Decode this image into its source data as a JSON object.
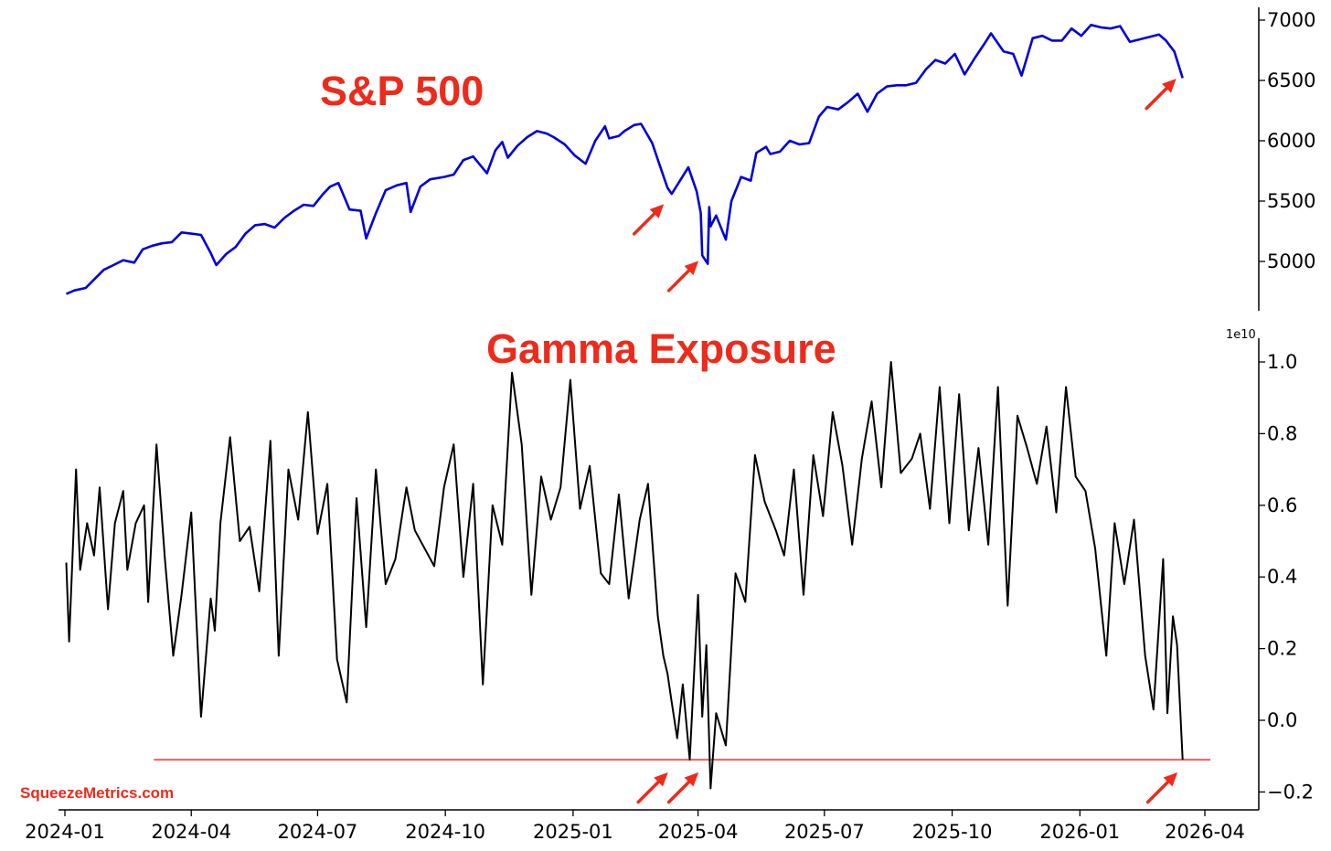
{
  "annotations": {
    "sp500_title": "S&P 500",
    "gamma_title": "Gamma Exposure",
    "source": "SqueezeMetrics.com",
    "title_color": "#ee2a1a",
    "arrow_color": "#ee2a1a"
  },
  "chart_data": [
    {
      "type": "line",
      "title": "S&P 500",
      "color": "#0000dd",
      "yaxis_side": "right",
      "ylim": [
        4620,
        7080
      ],
      "yticks": [
        5000,
        5500,
        6000,
        6500,
        7000
      ],
      "ytick_labels": [
        "5000",
        "5500",
        "6000",
        "6500",
        "7000"
      ],
      "grid": false,
      "series": [
        {
          "x": [
            "2024-01-02",
            "2024-01-08",
            "2024-01-16",
            "2024-01-22",
            "2024-01-29",
            "2024-02-05",
            "2024-02-12",
            "2024-02-20",
            "2024-02-26",
            "2024-03-04",
            "2024-03-11",
            "2024-03-18",
            "2024-03-25",
            "2024-04-01",
            "2024-04-08",
            "2024-04-15",
            "2024-04-19",
            "2024-04-26",
            "2024-05-03",
            "2024-05-10",
            "2024-05-17",
            "2024-05-24",
            "2024-05-31",
            "2024-06-07",
            "2024-06-14",
            "2024-06-21",
            "2024-06-28",
            "2024-07-05",
            "2024-07-10",
            "2024-07-16",
            "2024-07-24",
            "2024-08-01",
            "2024-08-05",
            "2024-08-12",
            "2024-08-19",
            "2024-08-27",
            "2024-09-03",
            "2024-09-06",
            "2024-09-13",
            "2024-09-20",
            "2024-09-30",
            "2024-10-07",
            "2024-10-14",
            "2024-10-21",
            "2024-10-31",
            "2024-11-06",
            "2024-11-11",
            "2024-11-15",
            "2024-11-22",
            "2024-11-29",
            "2024-12-06",
            "2024-12-13",
            "2024-12-18",
            "2024-12-26",
            "2025-01-02",
            "2025-01-10",
            "2025-01-17",
            "2025-01-24",
            "2025-01-27",
            "2025-02-03",
            "2025-02-07",
            "2025-02-14",
            "2025-02-19",
            "2025-02-27",
            "2025-03-04",
            "2025-03-10",
            "2025-03-13",
            "2025-03-19",
            "2025-03-25",
            "2025-03-31",
            "2025-04-03",
            "2025-04-04",
            "2025-04-08",
            "2025-04-09",
            "2025-04-10",
            "2025-04-14",
            "2025-04-21",
            "2025-04-25",
            "2025-05-02",
            "2025-05-09",
            "2025-05-13",
            "2025-05-20",
            "2025-05-23",
            "2025-05-30",
            "2025-06-06",
            "2025-06-13",
            "2025-06-20",
            "2025-06-27",
            "2025-07-03",
            "2025-07-11",
            "2025-07-18",
            "2025-07-25",
            "2025-08-01",
            "2025-08-08",
            "2025-08-15",
            "2025-08-22",
            "2025-08-29",
            "2025-09-05",
            "2025-09-12",
            "2025-09-19",
            "2025-09-26",
            "2025-10-03",
            "2025-10-10",
            "2025-10-17",
            "2025-10-24",
            "2025-10-29",
            "2025-11-07",
            "2025-11-14",
            "2025-11-20",
            "2025-11-28",
            "2025-12-05",
            "2025-12-12",
            "2025-12-19",
            "2025-12-26",
            "2026-01-02",
            "2026-01-09",
            "2026-01-16",
            "2026-01-23",
            "2026-01-30",
            "2026-02-06",
            "2026-02-13",
            "2026-02-20",
            "2026-02-27",
            "2026-03-04",
            "2026-03-10",
            "2026-03-16"
          ],
          "y": [
            4730,
            4760,
            4780,
            4850,
            4930,
            4970,
            5010,
            4990,
            5100,
            5130,
            5150,
            5160,
            5240,
            5230,
            5220,
            5070,
            4970,
            5060,
            5120,
            5230,
            5300,
            5310,
            5280,
            5360,
            5420,
            5470,
            5460,
            5560,
            5620,
            5650,
            5430,
            5420,
            5190,
            5400,
            5590,
            5630,
            5650,
            5410,
            5620,
            5680,
            5700,
            5720,
            5840,
            5870,
            5730,
            5920,
            5990,
            5860,
            5960,
            6030,
            6080,
            6060,
            6030,
            5970,
            5880,
            5810,
            6000,
            6120,
            6020,
            6040,
            6080,
            6130,
            6140,
            5980,
            5810,
            5610,
            5560,
            5670,
            5780,
            5580,
            5400,
            5050,
            4980,
            5450,
            5290,
            5380,
            5180,
            5500,
            5700,
            5670,
            5900,
            5950,
            5890,
            5910,
            6000,
            5970,
            5980,
            6200,
            6280,
            6260,
            6320,
            6390,
            6240,
            6390,
            6450,
            6460,
            6460,
            6480,
            6590,
            6670,
            6640,
            6720,
            6550,
            6680,
            6800,
            6890,
            6740,
            6720,
            6540,
            6850,
            6870,
            6830,
            6830,
            6930,
            6870,
            6960,
            6940,
            6930,
            6950,
            6820,
            6840,
            6860,
            6880,
            6830,
            6740,
            6520
          ]
        }
      ]
    },
    {
      "type": "line",
      "title": "Gamma Exposure",
      "color": "#000000",
      "yaxis_side": "right",
      "ylim": [
        -0.25,
        1.05
      ],
      "yticks": [
        -0.2,
        0.0,
        0.2,
        0.4,
        0.6,
        0.8,
        1.0
      ],
      "ytick_labels": [
        "−0.2",
        "0.0",
        "0.2",
        "0.4",
        "0.6",
        "0.8",
        "1.0"
      ],
      "offset_label": "1e10",
      "reference_line": {
        "y": -0.11,
        "color": "#ff0000",
        "x_start": "2024-03-05",
        "x_end": "2026-04-05"
      },
      "grid": false,
      "series": [
        {
          "x": [
            "2024-01-02",
            "2024-01-04",
            "2024-01-09",
            "2024-01-12",
            "2024-01-17",
            "2024-01-22",
            "2024-01-26",
            "2024-02-01",
            "2024-02-06",
            "2024-02-12",
            "2024-02-15",
            "2024-02-21",
            "2024-02-27",
            "2024-03-01",
            "2024-03-07",
            "2024-03-13",
            "2024-03-19",
            "2024-03-25",
            "2024-04-01",
            "2024-04-08",
            "2024-04-15",
            "2024-04-18",
            "2024-04-22",
            "2024-04-29",
            "2024-05-06",
            "2024-05-13",
            "2024-05-20",
            "2024-05-28",
            "2024-06-03",
            "2024-06-10",
            "2024-06-17",
            "2024-06-24",
            "2024-07-01",
            "2024-07-08",
            "2024-07-15",
            "2024-07-22",
            "2024-07-29",
            "2024-08-05",
            "2024-08-12",
            "2024-08-19",
            "2024-08-26",
            "2024-09-03",
            "2024-09-09",
            "2024-09-16",
            "2024-09-23",
            "2024-09-30",
            "2024-10-07",
            "2024-10-14",
            "2024-10-21",
            "2024-10-28",
            "2024-11-04",
            "2024-11-11",
            "2024-11-18",
            "2024-11-25",
            "2024-12-02",
            "2024-12-09",
            "2024-12-16",
            "2024-12-23",
            "2024-12-30",
            "2025-01-06",
            "2025-01-13",
            "2025-01-21",
            "2025-01-27",
            "2025-02-03",
            "2025-02-10",
            "2025-02-18",
            "2025-02-24",
            "2025-03-03",
            "2025-03-07",
            "2025-03-10",
            "2025-03-13",
            "2025-03-17",
            "2025-03-21",
            "2025-03-26",
            "2025-04-01",
            "2025-04-04",
            "2025-04-07",
            "2025-04-10",
            "2025-04-14",
            "2025-04-21",
            "2025-04-28",
            "2025-05-05",
            "2025-05-12",
            "2025-05-19",
            "2025-05-27",
            "2025-06-02",
            "2025-06-09",
            "2025-06-16",
            "2025-06-23",
            "2025-06-30",
            "2025-07-07",
            "2025-07-14",
            "2025-07-21",
            "2025-07-28",
            "2025-08-04",
            "2025-08-11",
            "2025-08-18",
            "2025-08-25",
            "2025-09-02",
            "2025-09-08",
            "2025-09-15",
            "2025-09-22",
            "2025-09-29",
            "2025-10-06",
            "2025-10-13",
            "2025-10-20",
            "2025-10-27",
            "2025-11-03",
            "2025-11-10",
            "2025-11-17",
            "2025-11-24",
            "2025-12-01",
            "2025-12-08",
            "2025-12-15",
            "2025-12-22",
            "2025-12-29",
            "2026-01-05",
            "2026-01-12",
            "2026-01-20",
            "2026-01-26",
            "2026-02-02",
            "2026-02-09",
            "2026-02-17",
            "2026-02-23",
            "2026-03-02",
            "2026-03-05",
            "2026-03-09",
            "2026-03-12",
            "2026-03-16"
          ],
          "y": [
            0.44,
            0.22,
            0.7,
            0.42,
            0.55,
            0.46,
            0.65,
            0.31,
            0.55,
            0.64,
            0.42,
            0.55,
            0.6,
            0.33,
            0.77,
            0.45,
            0.18,
            0.35,
            0.58,
            0.01,
            0.34,
            0.25,
            0.55,
            0.79,
            0.5,
            0.54,
            0.36,
            0.78,
            0.18,
            0.7,
            0.56,
            0.86,
            0.52,
            0.66,
            0.17,
            0.05,
            0.62,
            0.26,
            0.7,
            0.38,
            0.45,
            0.65,
            0.53,
            0.48,
            0.43,
            0.65,
            0.77,
            0.4,
            0.66,
            0.1,
            0.6,
            0.49,
            0.97,
            0.77,
            0.35,
            0.68,
            0.56,
            0.65,
            0.95,
            0.59,
            0.71,
            0.41,
            0.38,
            0.63,
            0.34,
            0.56,
            0.66,
            0.29,
            0.18,
            0.13,
            0.05,
            -0.05,
            0.1,
            -0.11,
            0.35,
            0.01,
            0.21,
            -0.19,
            0.02,
            -0.07,
            0.41,
            0.33,
            0.74,
            0.61,
            0.53,
            0.46,
            0.7,
            0.35,
            0.74,
            0.57,
            0.86,
            0.71,
            0.49,
            0.73,
            0.89,
            0.65,
            1.0,
            0.69,
            0.73,
            0.8,
            0.59,
            0.93,
            0.55,
            0.91,
            0.53,
            0.76,
            0.49,
            0.93,
            0.32,
            0.85,
            0.76,
            0.66,
            0.82,
            0.58,
            0.93,
            0.68,
            0.64,
            0.48,
            0.18,
            0.55,
            0.38,
            0.56,
            0.18,
            0.03,
            0.45,
            0.02,
            0.29,
            0.21,
            -0.11
          ]
        }
      ]
    }
  ],
  "x_axis": {
    "tick_dates": [
      "2024-01-01",
      "2024-04-01",
      "2024-07-01",
      "2024-10-01",
      "2025-01-01",
      "2025-04-01",
      "2025-07-01",
      "2025-10-01",
      "2026-01-01",
      "2026-04-01"
    ],
    "tick_labels": [
      "2024-01",
      "2024-04",
      "2024-07",
      "2024-10",
      "2025-01",
      "2025-04",
      "2025-07",
      "2025-10",
      "2026-01",
      "2026-04"
    ]
  },
  "arrows": [
    {
      "panel": 0,
      "x": "2025-03-10",
      "y": 5520
    },
    {
      "panel": 0,
      "x": "2025-04-04",
      "y": 5050
    },
    {
      "panel": 0,
      "x": "2026-03-14",
      "y": 6560
    },
    {
      "panel": 1,
      "x": "2025-03-13",
      "y": -0.13
    },
    {
      "panel": 1,
      "x": "2025-04-04",
      "y": -0.13
    },
    {
      "panel": 1,
      "x": "2026-03-15",
      "y": -0.13
    }
  ]
}
